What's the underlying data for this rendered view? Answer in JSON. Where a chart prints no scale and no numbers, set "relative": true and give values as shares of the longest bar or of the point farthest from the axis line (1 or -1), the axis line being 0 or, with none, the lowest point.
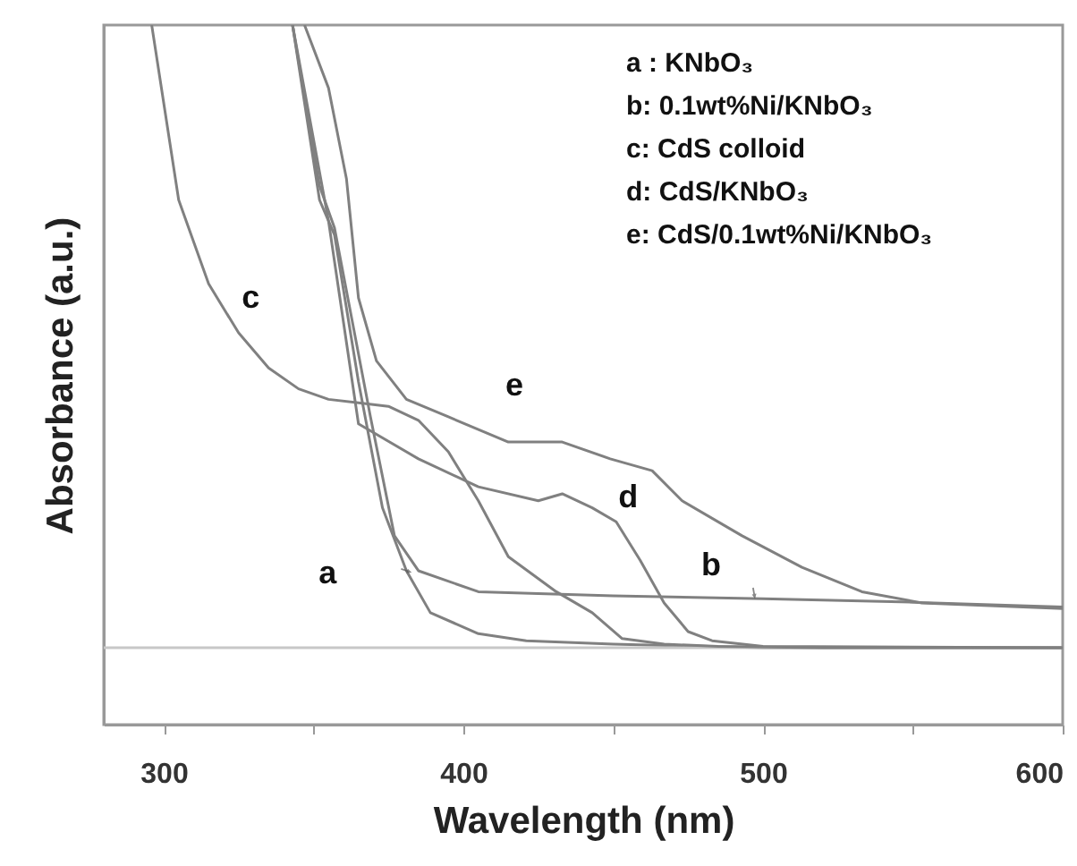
{
  "chart_data": {
    "type": "line",
    "xlabel": "Wavelength (nm)",
    "ylabel": "Absorbance (a.u.)",
    "relative": true,
    "marker": "none",
    "line_style": "solid",
    "xlim": [
      280,
      600
    ],
    "xticks": [
      {
        "value": 300,
        "label": "300"
      },
      {
        "value": 350,
        "label": null
      },
      {
        "value": 400,
        "label": "400"
      },
      {
        "value": 450,
        "label": null
      },
      {
        "value": 500,
        "label": "500"
      },
      {
        "value": 550,
        "label": null
      },
      {
        "value": 600,
        "label": "600"
      }
    ],
    "series": [
      {
        "color": "#808080",
        "x": [
          343,
          352,
          357,
          365,
          373,
          381,
          389,
          405,
          421,
          450,
          500,
          600
        ],
        "values": [
          1.0,
          0.75,
          0.7,
          0.49,
          0.31,
          0.22,
          0.16,
          0.13,
          0.12,
          0.115,
          0.11,
          0.11
        ]
      },
      {
        "color": "#808080",
        "x": [
          343,
          352,
          357,
          369,
          377,
          385,
          405,
          450,
          500,
          550,
          600
        ],
        "values": [
          1.0,
          0.77,
          0.71,
          0.44,
          0.27,
          0.22,
          0.19,
          0.184,
          0.18,
          0.175,
          0.168
        ]
      },
      {
        "color": "#808080",
        "x": [
          296,
          305,
          315,
          325,
          335,
          345,
          355,
          365,
          375,
          385,
          395,
          405,
          415,
          431,
          443,
          453,
          467,
          485,
          520,
          600
        ],
        "values": [
          1.0,
          0.75,
          0.63,
          0.56,
          0.51,
          0.48,
          0.465,
          0.46,
          0.455,
          0.435,
          0.39,
          0.32,
          0.24,
          0.19,
          0.16,
          0.123,
          0.115,
          0.112,
          0.11,
          0.11
        ]
      },
      {
        "color": "#808080",
        "x": [
          343,
          355,
          365,
          385,
          405,
          425,
          433,
          443,
          451,
          459,
          467,
          475,
          483,
          500,
          600
        ],
        "values": [
          1.0,
          0.72,
          0.43,
          0.38,
          0.34,
          0.32,
          0.33,
          0.31,
          0.29,
          0.235,
          0.174,
          0.133,
          0.12,
          0.112,
          0.11
        ]
      },
      {
        "color": "#808080",
        "x": [
          347,
          355,
          361,
          365,
          371,
          381,
          395,
          415,
          433,
          449,
          463,
          473,
          493,
          513,
          533,
          553,
          600
        ],
        "values": [
          1.0,
          0.91,
          0.78,
          0.61,
          0.52,
          0.465,
          0.44,
          0.404,
          0.404,
          0.38,
          0.363,
          0.32,
          0.27,
          0.225,
          0.19,
          0.174,
          0.166
        ]
      }
    ],
    "ref_lines": [
      {
        "axis": "y",
        "value": 0.11,
        "color": "#c8c8c8"
      }
    ],
    "annotations": [
      {
        "text": "a",
        "x": 381,
        "y": 0.22
      },
      {
        "text": "b",
        "x": 497,
        "y": 0.18
      },
      {
        "text": "c",
        "x": 329,
        "y": 0.54
      },
      {
        "text": "d",
        "x": 455,
        "y": 0.26
      },
      {
        "text": "e",
        "x": 417,
        "y": 0.404
      },
      "a :  KNbO₃",
      "b:  0.1wt%Ni/KNbO₃",
      "c:  CdS colloid",
      "d:  CdS/KNbO₃",
      "e:  CdS/0.1wt%Ni/KNbO₃"
    ]
  }
}
